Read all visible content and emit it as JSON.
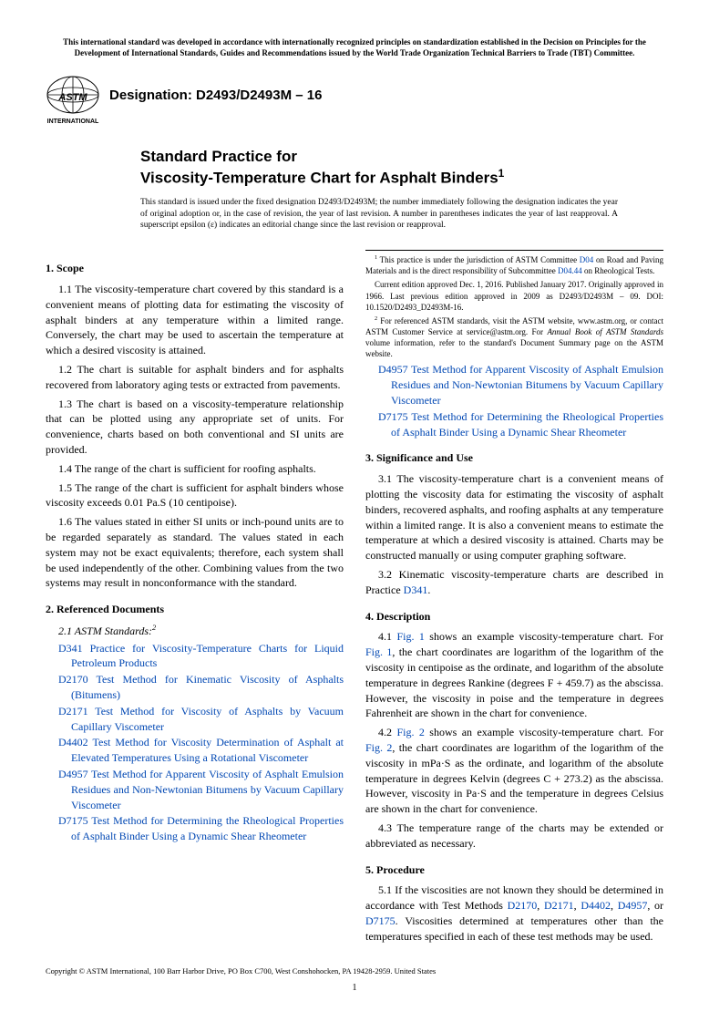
{
  "topNotice": "This international standard was developed in accordance with internationally recognized principles on standardization established in the Decision on Principles for the Development of International Standards, Guides and Recommendations issued by the World Trade Organization Technical Barriers to Trade (TBT) Committee.",
  "designation": "Designation: D2493/D2493M – 16",
  "titleLead": "Standard Practice for",
  "titleMain": "Viscosity-Temperature Chart for Asphalt Binders",
  "titleSup": "1",
  "issueNote": "This standard is issued under the fixed designation D2493/D2493M; the number immediately following the designation indicates the year of original adoption or, in the case of revision, the year of last revision. A number in parentheses indicates the year of last reapproval. A superscript epsilon (ε) indicates an editorial change since the last revision or reapproval.",
  "scopeHead": "1. Scope",
  "p11": "1.1 The viscosity-temperature chart covered by this standard is a convenient means of plotting data for estimating the viscosity of asphalt binders at any temperature within a limited range. Conversely, the chart may be used to ascertain the temperature at which a desired viscosity is attained.",
  "p12": "1.2 The chart is suitable for asphalt binders and for asphalts recovered from laboratory aging tests or extracted from pavements.",
  "p13": "1.3 The chart is based on a viscosity-temperature relationship that can be plotted using any appropriate set of units. For convenience, charts based on both conventional and SI units are provided.",
  "p14": "1.4 The range of the chart is sufficient for roofing asphalts.",
  "p15": "1.5 The range of the chart is sufficient for asphalt binders whose viscosity exceeds 0.01 Pa.S (10 centipoise).",
  "p16": "1.6 The values stated in either SI units or inch-pound units are to be regarded separately as standard. The values stated in each system may not be exact equivalents; therefore, each system shall be used independently of the other. Combining values from the two systems may result in nonconformance with the standard.",
  "refHead": "2. Referenced Documents",
  "astmStd": "2.1 ASTM Standards:",
  "astmSup": "2",
  "refs": [
    {
      "code": "D341",
      "text": " Practice for Viscosity-Temperature Charts for Liquid Petroleum Products"
    },
    {
      "code": "D2170",
      "text": " Test Method for Kinematic Viscosity of Asphalts (Bitumens)"
    },
    {
      "code": "D2171",
      "text": " Test Method for Viscosity of Asphalts by Vacuum Capillary Viscometer"
    },
    {
      "code": "D4402",
      "text": " Test Method for Viscosity Determination of Asphalt at Elevated Temperatures Using a Rotational Viscometer"
    },
    {
      "code": "D4957",
      "text": " Test Method for Apparent Viscosity of Asphalt Emulsion Residues and Non-Newtonian Bitumens by Vacuum Capillary Viscometer"
    },
    {
      "code": "D7175",
      "text": " Test Method for Determining the Rheological Properties of Asphalt Binder Using a Dynamic Shear Rheometer"
    }
  ],
  "sigHead": "3. Significance and Use",
  "p31": "3.1 The viscosity-temperature chart is a convenient means of plotting the viscosity data for estimating the viscosity of asphalt binders, recovered asphalts, and roofing asphalts at any temperature within a limited range. It is also a convenient means to estimate the temperature at which a desired viscosity is attained. Charts may be constructed manually or using computer graphing software.",
  "p32a": "3.2 Kinematic viscosity-temperature charts are described in Practice ",
  "p32link": "D341",
  "p32b": ".",
  "descHead": "4. Description",
  "p41a": "4.1 ",
  "fig1a": "Fig. 1",
  "p41b": " shows an example viscosity-temperature chart. For ",
  "fig1b": "Fig. 1",
  "p41c": ", the chart coordinates are logarithm of the logarithm of the viscosity in centipoise as the ordinate, and logarithm of the absolute temperature in degrees Rankine (degrees F + 459.7) as the abscissa. However, the viscosity in poise and the temperature in degrees Fahrenheit are shown in the chart for convenience.",
  "p42a": "4.2 ",
  "fig2a": "Fig. 2",
  "p42b": " shows an example viscosity-temperature chart. For ",
  "fig2b": "Fig. 2",
  "p42c": ", the chart coordinates are logarithm of the logarithm of the viscosity in mPa·S as the ordinate, and logarithm of the absolute temperature in degrees Kelvin (degrees C + 273.2) as the abscissa. However, viscosity in Pa·S and the temperature in degrees Celsius are shown in the chart for convenience.",
  "p43": "4.3 The temperature range of the charts may be extended or abbreviated as necessary.",
  "procHead": "5. Procedure",
  "p51a": "5.1 If the viscosities are not known they should be determined in accordance with Test Methods ",
  "p51links": [
    "D2170",
    "D2171",
    "D4402",
    "D4957",
    "D7175"
  ],
  "p51b": ". Viscosities determined at temperatures other than the temperatures specified in each of these test methods may be used.",
  "fn1a": " This practice is under the jurisdiction of ASTM Committee ",
  "fn1link1": "D04",
  "fn1b": " on Road and Paving Materials and is the direct responsibility of Subcommittee ",
  "fn1link2": "D04.44",
  "fn1c": " on Rheological Tests.",
  "fn1d": "Current edition approved Dec. 1, 2016. Published January 2017. Originally approved in 1966. Last previous edition approved in 2009 as D2493/D2493M – 09. DOI: 10.1520/D2493_D2493M-16.",
  "fn2a": " For referenced ASTM standards, visit the ASTM website, www.astm.org, or contact ASTM Customer Service at service@astm.org. For ",
  "fn2i": "Annual Book of ASTM Standards",
  "fn2b": " volume information, refer to the standard's Document Summary page on the ASTM website.",
  "copyright": "Copyright © ASTM International, 100 Barr Harbor Drive, PO Box C700, West Conshohocken, PA 19428-2959. United States",
  "pageNum": "1"
}
